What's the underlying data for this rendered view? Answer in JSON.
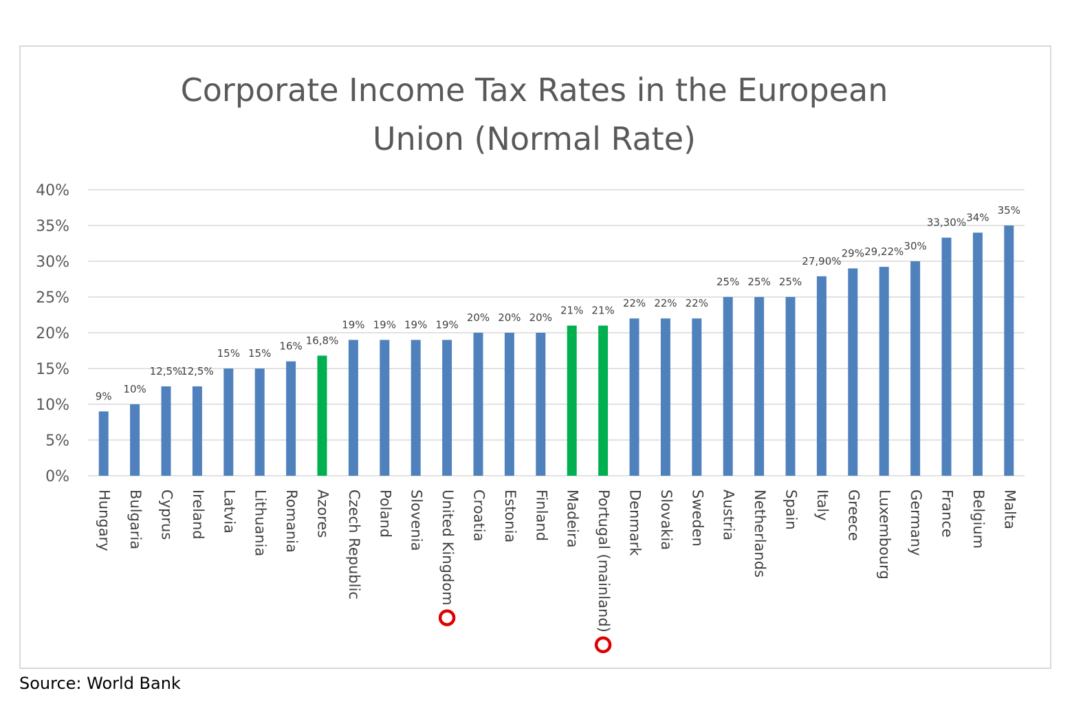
{
  "chart_data": {
    "type": "bar",
    "title": "Corporate Income Tax Rates in the European Union (Normal Rate)",
    "title_lines": [
      "Corporate Income Tax Rates in the European",
      "Union (Normal Rate)"
    ],
    "xlabel": "",
    "ylabel": "",
    "ylim": [
      0,
      40
    ],
    "yticks": [
      "0%",
      "5%",
      "10%",
      "15%",
      "20%",
      "25%",
      "30%",
      "35%",
      "40%"
    ],
    "grid": true,
    "legend": "none",
    "categories": [
      "Hungary",
      "Bulgaria",
      "Cyprus",
      "Ireland",
      "Latvia",
      "Lithuania",
      "Romania",
      "Azores",
      "Czech Republic",
      "Poland",
      "Slovenia",
      "United Kingdom",
      "Croatia",
      "Estonia",
      "Finland",
      "Madeira",
      "Portugal (mainland)",
      "Denmark",
      "Slovakia",
      "Sweden",
      "Austria",
      "Netherlands",
      "Spain",
      "Italy",
      "Greece",
      "Luxembourg",
      "Germany",
      "France",
      "Belgium",
      "Malta"
    ],
    "values": [
      9,
      10,
      12.5,
      12.5,
      15,
      15,
      16,
      16.8,
      19,
      19,
      19,
      19,
      20,
      20,
      20,
      21,
      21,
      22,
      22,
      22,
      25,
      25,
      25,
      27.9,
      29,
      29.22,
      30,
      33.3,
      34,
      35
    ],
    "data_labels": [
      "9%",
      "10%",
      "12,5%",
      "12,5%",
      "15%",
      "15%",
      "16%",
      "16,8%",
      "19%",
      "19%",
      "19%",
      "19%",
      "20%",
      "20%",
      "20%",
      "21%",
      "21%",
      "22%",
      "22%",
      "22%",
      "25%",
      "25%",
      "25%",
      "27,90%",
      "29%",
      "29,22%",
      "30%",
      "33,30%",
      "34%",
      "35%"
    ],
    "highlighted": [
      "Azores",
      "Madeira",
      "Portugal (mainland)"
    ],
    "marked": [
      "United Kingdom",
      "Portugal (mainland)"
    ],
    "source": "Source: World Bank"
  },
  "colors": {
    "bar": "#4f81bd",
    "highlight": "#00b050",
    "marker": "#e00000",
    "grid": "#d9d9d9",
    "frame": "#d9d9d9"
  }
}
